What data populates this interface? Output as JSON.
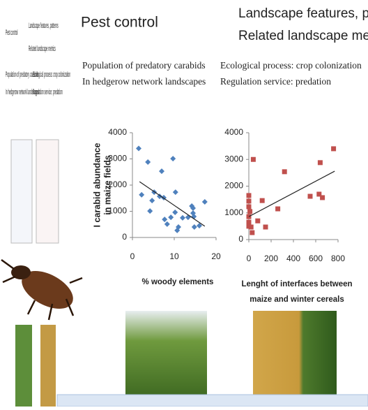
{
  "header": {
    "title": "Pest control",
    "right_lines": [
      "Landscape features, patterns",
      "Related landscape metrics"
    ]
  },
  "captions": {
    "left": [
      "Population of predatory carabids",
      "In hedgerow network landscapes"
    ],
    "right": [
      "Ecological process: crop colonization",
      "Regulation service: predation"
    ]
  },
  "chart_data": [
    {
      "type": "scatter",
      "y_label": [
        "I carabid abundance",
        "in maize fields"
      ],
      "x_label": [
        "% woody elements"
      ],
      "color": "#4f81bd",
      "x": [
        1.5,
        2.2,
        3.7,
        4.2,
        4.7,
        5.2,
        6.5,
        7.5,
        7,
        7.7,
        8.3,
        9.7,
        9.2,
        10.2,
        10.3,
        11,
        10.7,
        12,
        13.3,
        14.2,
        14.5,
        14.5,
        14.7,
        14.8,
        16,
        17.3
      ],
      "y": [
        3400,
        1630,
        2880,
        1010,
        1410,
        1730,
        1570,
        1520,
        2530,
        690,
        510,
        3010,
        770,
        960,
        1730,
        400,
        270,
        750,
        770,
        1200,
        1120,
        930,
        800,
        400,
        450,
        1360
      ],
      "trendline": {
        "x": [
          1.7,
          17.3
        ],
        "y": [
          2130,
          430
        ]
      },
      "xlim": [
        0,
        20
      ],
      "xticks": [
        0,
        10,
        20
      ],
      "ylim": [
        0,
        4000
      ],
      "yticks": [
        0,
        1000,
        2000,
        3000,
        4000
      ]
    },
    {
      "type": "scatter",
      "x_label": [
        "Lenght of interfaces between",
        "maize and winter cereals"
      ],
      "color": "#c0504d",
      "x": [
        0,
        0,
        0,
        10,
        0,
        0,
        20,
        30,
        0,
        40,
        80,
        120,
        150,
        260,
        320,
        550,
        630,
        660,
        640,
        760
      ],
      "y": [
        1650,
        1440,
        1230,
        1050,
        860,
        650,
        470,
        260,
        500,
        3000,
        700,
        1460,
        470,
        1150,
        2540,
        1620,
        1700,
        1570,
        2880,
        3400
      ],
      "trendline": {
        "x": [
          0,
          770
        ],
        "y": [
          860,
          2560
        ]
      },
      "xlim": [
        0,
        800
      ],
      "xticks": [
        0,
        200,
        400,
        600,
        800
      ],
      "ylim": [
        0,
        4000
      ],
      "yticks": [
        0,
        1000,
        2000,
        3000,
        4000
      ]
    }
  ]
}
